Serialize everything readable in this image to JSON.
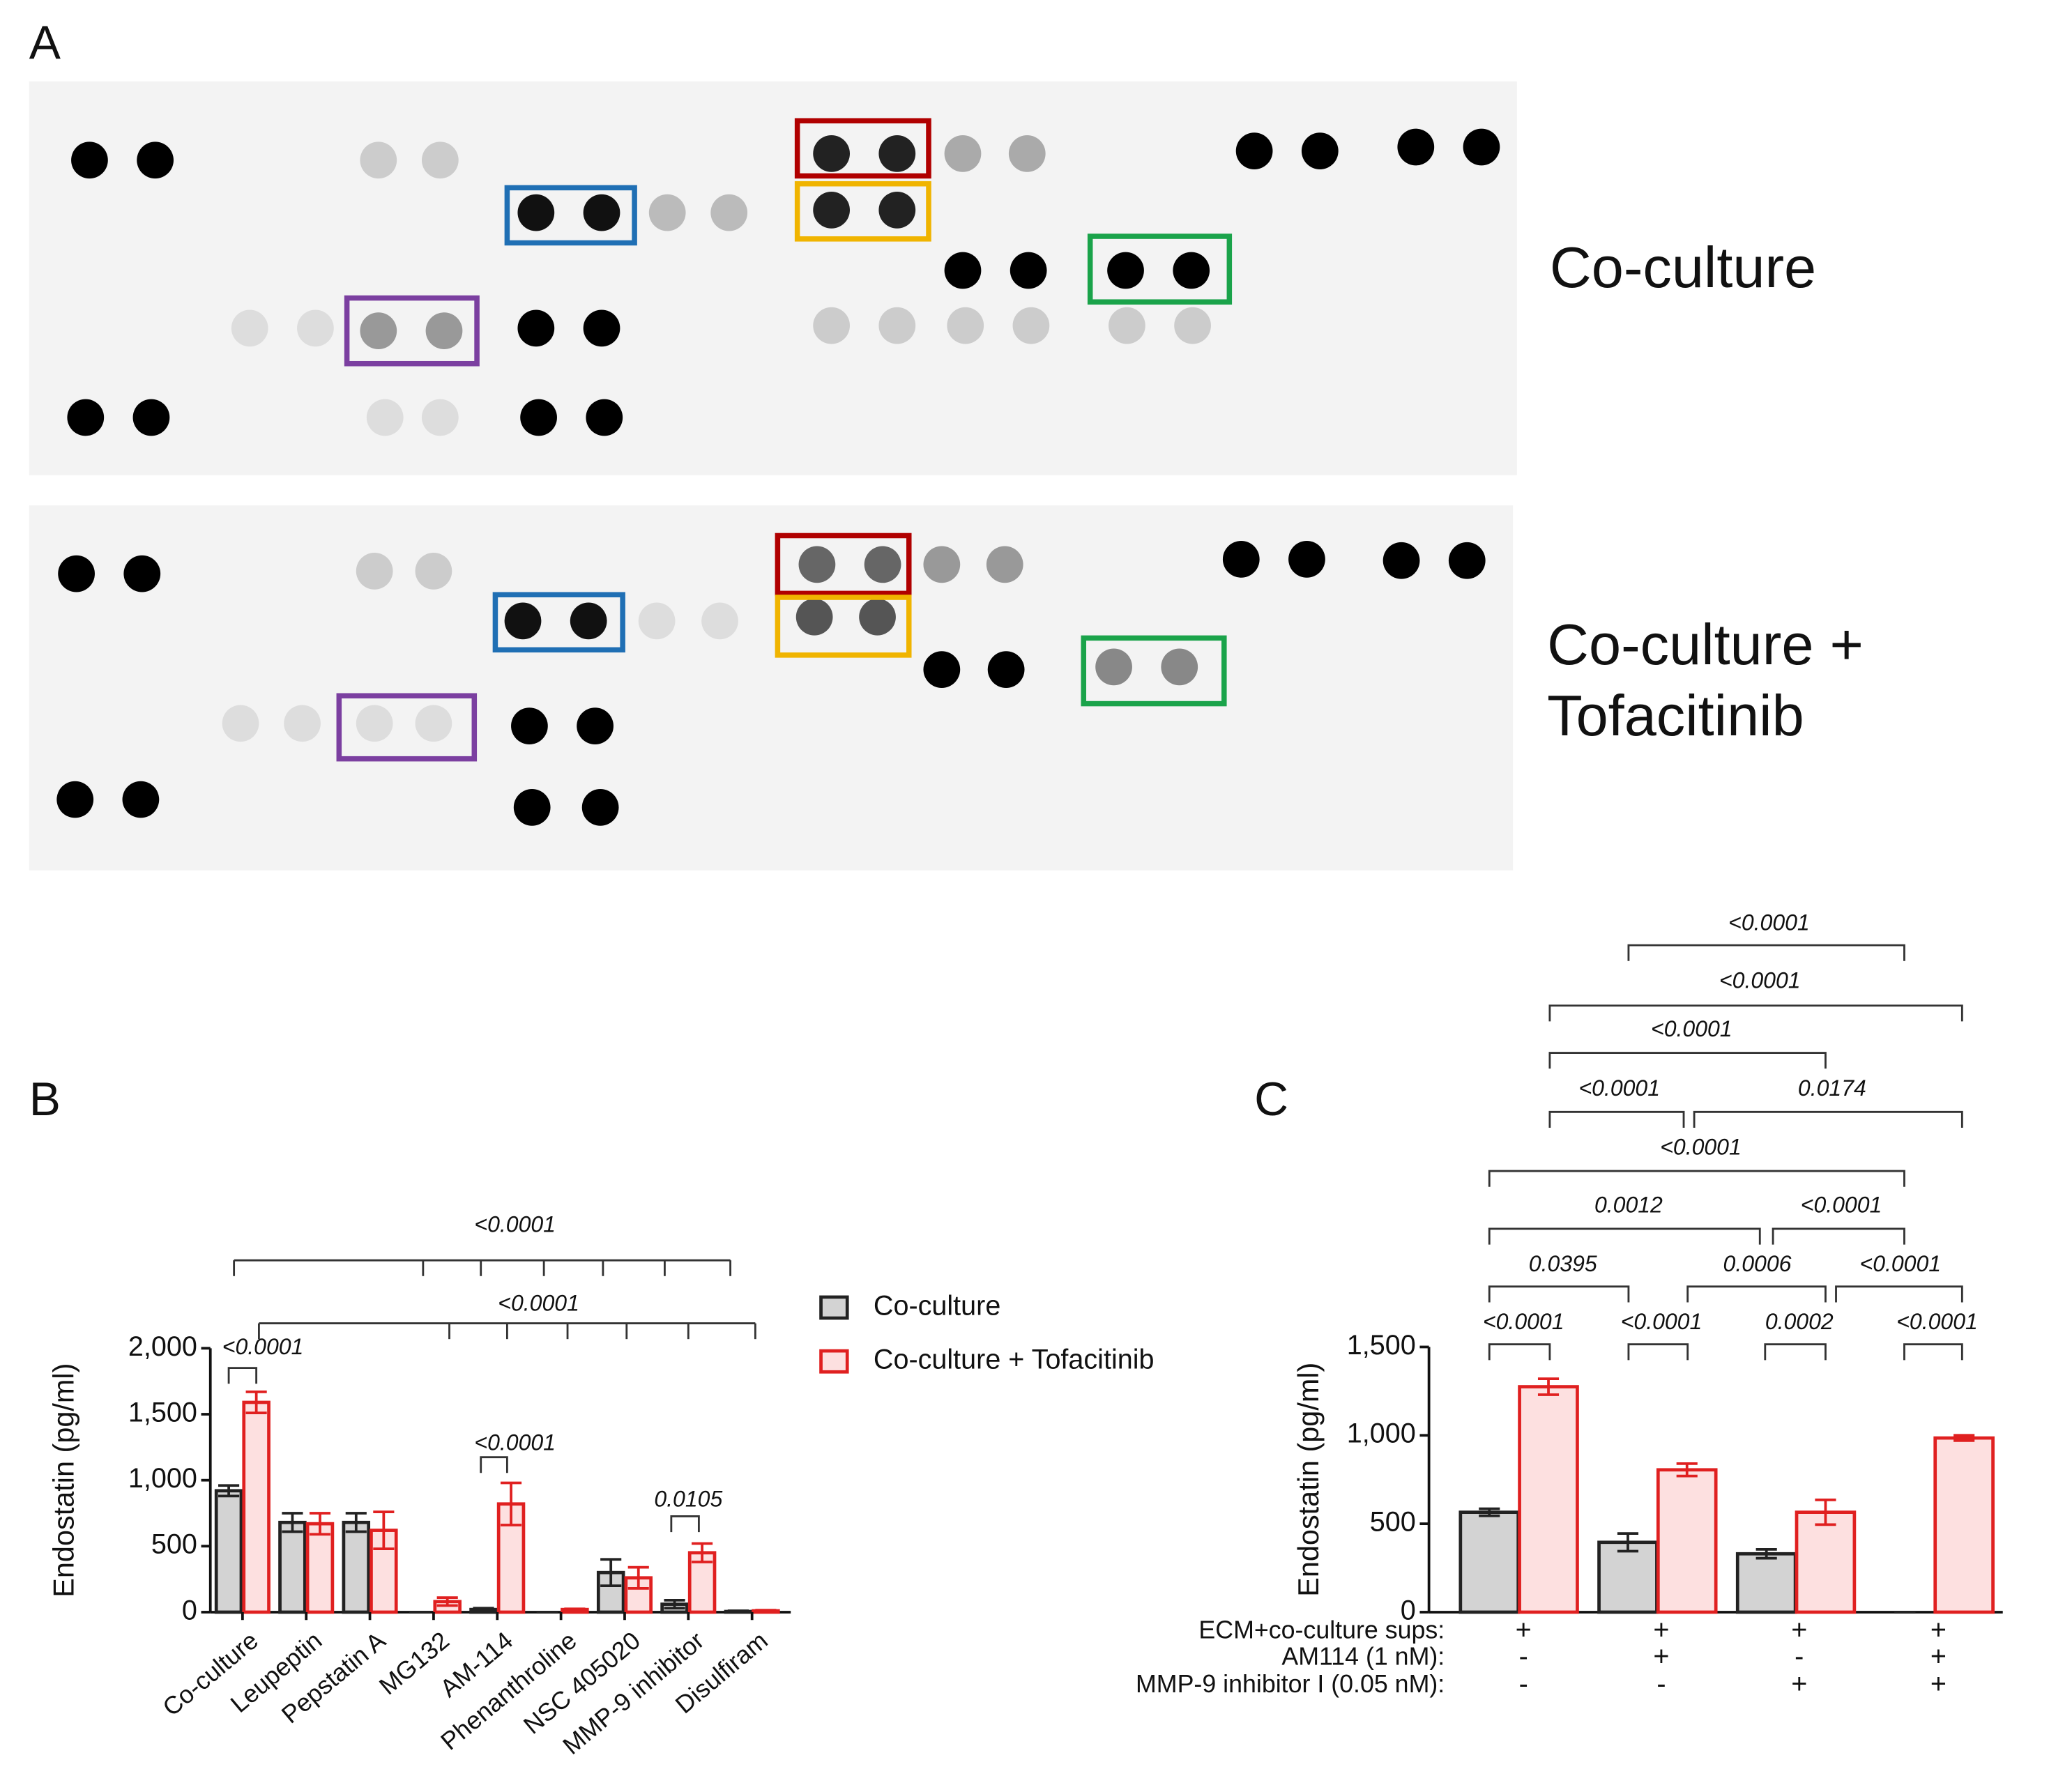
{
  "panel_a": {
    "label": "A",
    "row_labels": [
      "Co-culture",
      "Co-culture + Tofacitinib"
    ]
  },
  "chart_data": [
    {
      "type": "bar",
      "panel": "B",
      "y_label": "Endostatin (pg/ml)",
      "categories": [
        "Co-culture",
        "Leupeptin",
        "Pepstatin A",
        "MG132",
        "AM-114",
        "Phenanthroline",
        "NSC 405020",
        "MMP-9 inhibitor",
        "Disulfiram"
      ],
      "series": [
        {
          "name": "Co-culture",
          "color": "#222222",
          "fill": "#d3d3d3",
          "values": [
            920,
            680,
            680,
            0,
            20,
            0,
            300,
            60,
            5
          ],
          "errors": [
            40,
            70,
            70,
            0,
            10,
            0,
            100,
            30,
            5
          ]
        },
        {
          "name": "Co-culture + Tofacitinib",
          "color": "#e02020",
          "fill": "#fde0e0",
          "values": [
            1590,
            670,
            620,
            80,
            820,
            20,
            260,
            450,
            10
          ],
          "errors": [
            80,
            80,
            140,
            30,
            160,
            5,
            80,
            70,
            5
          ]
        }
      ],
      "ylim": [
        0,
        2000
      ],
      "yticks": [
        0,
        500,
        {
          "value": 1000,
          "label": "1,000"
        },
        {
          "value": 1500,
          "label": "1,500"
        },
        {
          "value": 2000,
          "label": "2,000"
        }
      ],
      "annotations": [
        "<0.0001",
        "<0.0001",
        "0.0105",
        "<0.0001",
        "<0.0001"
      ]
    },
    {
      "type": "bar",
      "panel": "C",
      "y_label": "Endostatin (pg/ml)",
      "series": [
        {
          "color": "#222222",
          "fill": "#d3d3d3",
          "values": [
            565,
            395,
            330,
            0
          ],
          "errors": [
            20,
            50,
            25,
            0
          ]
        },
        {
          "color": "#e02020",
          "fill": "#fde0e0",
          "values": [
            1275,
            805,
            565,
            985
          ],
          "errors": [
            45,
            35,
            70,
            15
          ]
        }
      ],
      "ylim": [
        0,
        1500
      ],
      "yticks": [
        0,
        500,
        {
          "value": 1000,
          "label": "1,000"
        },
        {
          "value": 1500,
          "label": "1,500"
        }
      ],
      "conditions": [
        {
          "label": "ECM+co-culture sups:",
          "values": [
            "+",
            "+",
            "+",
            "+"
          ]
        },
        {
          "label": "AM114 (1 nM):",
          "values": [
            "-",
            "+",
            "-",
            "+"
          ]
        },
        {
          "label": "MMP-9 inhibitor I (0.05 nM):",
          "values": [
            "-",
            "-",
            "+",
            "+"
          ]
        }
      ],
      "annotations": [
        "<0.0001",
        "<0.0001",
        "0.0002",
        "<0.0001",
        "0.0395",
        "0.0006",
        "<0.0001",
        "0.0012",
        "<0.0001",
        "<0.0001",
        "<0.0001",
        "0.0174",
        "<0.0001",
        "<0.0001",
        "<0.0001"
      ]
    }
  ]
}
